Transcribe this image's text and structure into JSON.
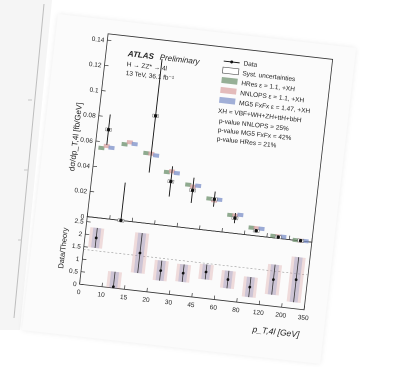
{
  "header": {
    "experiment": "ATLAS",
    "status": "Preliminary",
    "process": "H → ZZ* → 4l",
    "energy_lumi": "13 TeV, 36.1 fb⁻¹"
  },
  "legend": {
    "data": "Data",
    "syst": "Syst. uncertainties",
    "hres": "HRes ε = 1.1, +XH",
    "nnlops": "NNLOPS ε = 1.1, +XH",
    "mg5": "MG5 FxFx ε = 1.47, +XH",
    "xh": "XH = VBF+WH+ZH+ttH+bbH",
    "pv_nnlops": "p-value NNLOPS = 25%",
    "pv_mg5": "p-value MG5 FxFx = 42%",
    "pv_hres": "p-value HRes = 21%"
  },
  "labels": {
    "ylabel_top": "dσ/dp_T,4l [fb/GeV]",
    "ylabel_bottom": "Data/Theory",
    "xlabel": "p_T,4l [GeV]"
  },
  "colors": {
    "data": "#111111",
    "hres": "#6b8f6b",
    "nnlops": "#d9a0a0",
    "mg5": "#7b8fc8",
    "syst": "#ffffff"
  },
  "chart_data": {
    "type": "scatter",
    "x_edges": [
      0,
      10,
      15,
      20,
      30,
      45,
      60,
      80,
      120,
      200,
      350
    ],
    "xticks": [
      "0",
      "10",
      "15",
      "20",
      "30",
      "45",
      "60",
      "80",
      "120",
      "200",
      "350"
    ],
    "top": {
      "ylim": [
        0,
        0.145
      ],
      "yticks": [
        "0",
        "0.02",
        "0.04",
        "0.06",
        "0.08",
        "0.1",
        "0.12",
        "0.14"
      ],
      "data": [
        0.07,
        0.0,
        0.085,
        0.035,
        0.03,
        0.025,
        0.012,
        0.004,
        0.001,
        0.0002
      ],
      "data_err": [
        0.012,
        0.03,
        0.045,
        0.012,
        0.01,
        0.006,
        0.004,
        0.001,
        0.0004,
        0.0001
      ],
      "hres": [
        0.055,
        0.06,
        0.055,
        0.042,
        0.034,
        0.025,
        0.014,
        0.006,
        0.0015,
        0.0002
      ],
      "nnlops": [
        0.057,
        0.062,
        0.055,
        0.043,
        0.033,
        0.024,
        0.014,
        0.006,
        0.0016,
        0.0002
      ],
      "mg5": [
        0.056,
        0.061,
        0.054,
        0.042,
        0.034,
        0.025,
        0.015,
        0.006,
        0.0017,
        0.0003
      ]
    },
    "bottom": {
      "ylim": [
        0,
        2.7
      ],
      "yticks": [
        "0",
        "0.5",
        "1",
        "1.5",
        "2",
        "2.5"
      ],
      "ratio": [
        1.9,
        0.05,
        1.5,
        0.9,
        0.9,
        1.05,
        0.85,
        0.65,
        1.05,
        1.15
      ],
      "ratio_err": [
        0.4,
        0.6,
        0.8,
        0.4,
        0.35,
        0.3,
        0.35,
        0.4,
        0.6,
        0.9
      ]
    }
  }
}
